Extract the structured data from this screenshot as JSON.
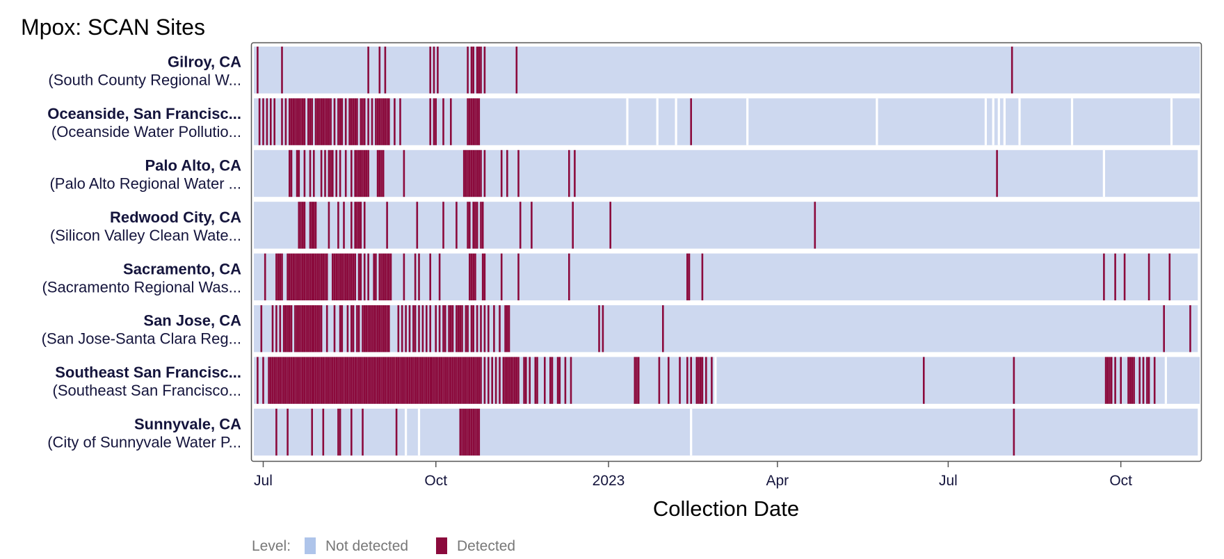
{
  "chart_data": {
    "type": "heatmap",
    "title": "Mpox: SCAN Sites",
    "xlabel": "Collection Date",
    "x_range": [
      "2022-06-26",
      "2023-11-12"
    ],
    "x_ticks": [
      {
        "date": "2022-07-01",
        "label": "Jul"
      },
      {
        "date": "2022-10-01",
        "label": "Oct"
      },
      {
        "date": "2023-01-01",
        "label": "2023"
      },
      {
        "date": "2023-04-01",
        "label": "Apr"
      },
      {
        "date": "2023-07-01",
        "label": "Jul"
      },
      {
        "date": "2023-10-01",
        "label": "Oct"
      }
    ],
    "legend": {
      "title": "Level:",
      "position": "bottom-left",
      "items": [
        {
          "label": "Not detected",
          "color": "#aec4ea"
        },
        {
          "label": "Detected",
          "color": "#8b0a3c"
        }
      ]
    },
    "colors": {
      "not_detected": "#cdd8ef",
      "detected": "#8b0a3c",
      "panel_border": "#555555"
    },
    "sites": [
      {
        "name": "Gilroy, CA",
        "plant": "(South County Regional W...",
        "data_end": "2023-11-12",
        "detected_dates": [
          "2022-06-28",
          "2022-07-11",
          "2022-08-26",
          "2022-09-01",
          "2022-09-04",
          "2022-09-28",
          "2022-09-30",
          "2022-10-02",
          "2022-10-18",
          "2022-10-20",
          "2022-10-21",
          "2022-10-23",
          "2022-10-24",
          "2022-10-25",
          "2022-10-27",
          "2022-11-13",
          "2023-08-04"
        ],
        "gap_dates": []
      },
      {
        "name": "Oceanside, San Francisc...",
        "plant": "(Oceanside Water Pollutio...",
        "data_end": "2023-11-12",
        "detected_dates": [
          "2022-06-29",
          "2022-07-01",
          "2022-07-03",
          "2022-07-05",
          "2022-07-07",
          "2022-07-11",
          "2022-07-13",
          "2022-07-15",
          "2022-07-16",
          "2022-07-17",
          "2022-07-18",
          "2022-07-19",
          "2022-07-20",
          "2022-07-21",
          "2022-07-22",
          "2022-07-23",
          "2022-07-25",
          "2022-07-26",
          "2022-07-27",
          "2022-07-29",
          "2022-07-30",
          "2022-07-31",
          "2022-08-01",
          "2022-08-02",
          "2022-08-03",
          "2022-08-04",
          "2022-08-05",
          "2022-08-06",
          "2022-08-08",
          "2022-08-10",
          "2022-08-11",
          "2022-08-12",
          "2022-08-14",
          "2022-08-16",
          "2022-08-17",
          "2022-08-18",
          "2022-08-19",
          "2022-08-20",
          "2022-08-22",
          "2022-08-23",
          "2022-08-24",
          "2022-08-26",
          "2022-08-28",
          "2022-08-30",
          "2022-08-31",
          "2022-09-01",
          "2022-09-02",
          "2022-09-03",
          "2022-09-04",
          "2022-09-05",
          "2022-09-06",
          "2022-09-09",
          "2022-09-12",
          "2022-09-28",
          "2022-09-30",
          "2022-10-01",
          "2022-10-05",
          "2022-10-09",
          "2022-10-18",
          "2022-10-19",
          "2022-10-20",
          "2022-10-21",
          "2022-10-22",
          "2022-10-23",
          "2022-10-24",
          "2023-02-14"
        ],
        "gap_dates": [
          "2023-01-11",
          "2023-01-27",
          "2023-02-06",
          "2023-03-16",
          "2023-05-24",
          "2023-07-21",
          "2023-07-25",
          "2023-07-28",
          "2023-07-31",
          "2023-08-08",
          "2023-09-05",
          "2023-10-28"
        ]
      },
      {
        "name": "Palo Alto, CA",
        "plant": "(Palo Alto Regional Water ...",
        "data_end": "2023-11-11",
        "detected_dates": [
          "2022-07-15",
          "2022-07-16",
          "2022-07-19",
          "2022-07-20",
          "2022-07-23",
          "2022-07-26",
          "2022-07-28",
          "2022-08-01",
          "2022-08-03",
          "2022-08-05",
          "2022-08-06",
          "2022-08-07",
          "2022-08-09",
          "2022-08-11",
          "2022-08-14",
          "2022-08-17",
          "2022-08-19",
          "2022-08-20",
          "2022-08-21",
          "2022-08-22",
          "2022-08-23",
          "2022-08-24",
          "2022-08-25",
          "2022-08-26",
          "2022-08-31",
          "2022-09-01",
          "2022-09-02",
          "2022-09-03",
          "2022-09-14",
          "2022-10-16",
          "2022-10-17",
          "2022-10-18",
          "2022-10-19",
          "2022-10-20",
          "2022-10-21",
          "2022-10-22",
          "2022-10-23",
          "2022-10-24",
          "2022-10-25",
          "2022-10-27",
          "2022-11-05",
          "2022-11-08",
          "2022-11-14",
          "2022-12-11",
          "2022-12-14",
          "2023-07-27"
        ],
        "gap_dates": [
          "2023-09-22"
        ]
      },
      {
        "name": "Redwood City, CA",
        "plant": "(Silicon Valley Clean Wate...",
        "data_end": "2023-11-12",
        "detected_dates": [
          "2022-07-20",
          "2022-07-21",
          "2022-07-22",
          "2022-07-23",
          "2022-07-26",
          "2022-07-27",
          "2022-07-28",
          "2022-07-29",
          "2022-08-05",
          "2022-08-10",
          "2022-08-13",
          "2022-08-17",
          "2022-08-19",
          "2022-08-20",
          "2022-08-21",
          "2022-08-22",
          "2022-08-24",
          "2022-09-05",
          "2022-09-21",
          "2022-10-05",
          "2022-10-12",
          "2022-10-18",
          "2022-10-19",
          "2022-10-21",
          "2022-10-22",
          "2022-10-23",
          "2022-10-25",
          "2022-10-26",
          "2022-11-15",
          "2022-11-21",
          "2022-12-13",
          "2023-01-02",
          "2023-04-21"
        ],
        "gap_dates": []
      },
      {
        "name": "Sacramento, CA",
        "plant": "(Sacramento Regional Was...",
        "data_end": "2023-11-11",
        "detected_dates": [
          "2022-07-02",
          "2022-07-08",
          "2022-07-09",
          "2022-07-10",
          "2022-07-11",
          "2022-07-14",
          "2022-07-15",
          "2022-07-16",
          "2022-07-17",
          "2022-07-18",
          "2022-07-19",
          "2022-07-20",
          "2022-07-21",
          "2022-07-22",
          "2022-07-23",
          "2022-07-24",
          "2022-07-25",
          "2022-07-26",
          "2022-07-27",
          "2022-07-28",
          "2022-07-29",
          "2022-07-30",
          "2022-07-31",
          "2022-08-01",
          "2022-08-02",
          "2022-08-03",
          "2022-08-04",
          "2022-08-07",
          "2022-08-08",
          "2022-08-09",
          "2022-08-10",
          "2022-08-11",
          "2022-08-12",
          "2022-08-13",
          "2022-08-14",
          "2022-08-15",
          "2022-08-16",
          "2022-08-17",
          "2022-08-18",
          "2022-08-19",
          "2022-08-21",
          "2022-08-22",
          "2022-08-24",
          "2022-08-26",
          "2022-08-29",
          "2022-08-30",
          "2022-09-01",
          "2022-09-02",
          "2022-09-03",
          "2022-09-04",
          "2022-09-05",
          "2022-09-06",
          "2022-09-07",
          "2022-09-14",
          "2022-09-20",
          "2022-09-22",
          "2022-09-28",
          "2022-10-03",
          "2022-10-19",
          "2022-10-20",
          "2022-10-21",
          "2022-10-22",
          "2022-10-26",
          "2022-10-27",
          "2022-11-05",
          "2022-11-14",
          "2022-12-11",
          "2023-02-12",
          "2023-02-13",
          "2023-02-20",
          "2023-09-22",
          "2023-09-28",
          "2023-10-03",
          "2023-10-16",
          "2023-10-27"
        ],
        "gap_dates": []
      },
      {
        "name": "San Jose, CA",
        "plant": "(San Jose-Santa Clara Reg...",
        "data_end": "2023-11-11",
        "detected_dates": [
          "2022-06-30",
          "2022-07-06",
          "2022-07-08",
          "2022-07-10",
          "2022-07-12",
          "2022-07-13",
          "2022-07-14",
          "2022-07-15",
          "2022-07-16",
          "2022-07-18",
          "2022-07-19",
          "2022-07-20",
          "2022-07-21",
          "2022-07-22",
          "2022-07-23",
          "2022-07-24",
          "2022-07-25",
          "2022-07-26",
          "2022-07-27",
          "2022-07-28",
          "2022-07-29",
          "2022-07-30",
          "2022-07-31",
          "2022-08-01",
          "2022-08-04",
          "2022-08-08",
          "2022-08-11",
          "2022-08-12",
          "2022-08-15",
          "2022-08-17",
          "2022-08-18",
          "2022-08-20",
          "2022-08-21",
          "2022-08-23",
          "2022-08-24",
          "2022-08-25",
          "2022-08-26",
          "2022-08-27",
          "2022-08-28",
          "2022-08-29",
          "2022-08-30",
          "2022-08-31",
          "2022-09-01",
          "2022-09-02",
          "2022-09-03",
          "2022-09-04",
          "2022-09-05",
          "2022-09-06",
          "2022-09-11",
          "2022-09-13",
          "2022-09-15",
          "2022-09-17",
          "2022-09-19",
          "2022-09-20",
          "2022-09-22",
          "2022-09-24",
          "2022-09-26",
          "2022-09-28",
          "2022-10-01",
          "2022-10-03",
          "2022-10-05",
          "2022-10-06",
          "2022-10-08",
          "2022-10-09",
          "2022-10-10",
          "2022-10-12",
          "2022-10-13",
          "2022-10-14",
          "2022-10-15",
          "2022-10-17",
          "2022-10-18",
          "2022-10-20",
          "2022-10-21",
          "2022-10-23",
          "2022-10-25",
          "2022-10-27",
          "2022-10-29",
          "2022-11-01",
          "2022-11-04",
          "2022-11-07",
          "2022-11-08",
          "2022-11-09",
          "2022-12-27",
          "2022-12-29",
          "2023-01-30",
          "2023-10-24",
          "2023-11-07"
        ],
        "gap_dates": []
      },
      {
        "name": "Southeast San Francisc...",
        "plant": "(Southeast San Francisco...",
        "data_end": "2023-11-12",
        "detected_dates": [
          "2022-06-28",
          "2022-07-01",
          "2022-07-04",
          "2022-07-05",
          "2022-07-06",
          "2022-07-07",
          "2022-07-08",
          "2022-07-09",
          "2022-07-10",
          "2022-07-11",
          "2022-07-12",
          "2022-07-13",
          "2022-07-14",
          "2022-07-15",
          "2022-07-16",
          "2022-07-17",
          "2022-07-18",
          "2022-07-19",
          "2022-07-20",
          "2022-07-21",
          "2022-07-22",
          "2022-07-23",
          "2022-07-24",
          "2022-07-25",
          "2022-07-26",
          "2022-07-27",
          "2022-07-28",
          "2022-07-29",
          "2022-07-30",
          "2022-07-31",
          "2022-08-01",
          "2022-08-02",
          "2022-08-03",
          "2022-08-04",
          "2022-08-05",
          "2022-08-06",
          "2022-08-07",
          "2022-08-08",
          "2022-08-09",
          "2022-08-10",
          "2022-08-11",
          "2022-08-12",
          "2022-08-13",
          "2022-08-14",
          "2022-08-15",
          "2022-08-16",
          "2022-08-17",
          "2022-08-18",
          "2022-08-19",
          "2022-08-20",
          "2022-08-21",
          "2022-08-22",
          "2022-08-23",
          "2022-08-24",
          "2022-08-25",
          "2022-08-26",
          "2022-08-27",
          "2022-08-28",
          "2022-08-29",
          "2022-08-30",
          "2022-08-31",
          "2022-09-01",
          "2022-09-02",
          "2022-09-03",
          "2022-09-04",
          "2022-09-05",
          "2022-09-06",
          "2022-09-07",
          "2022-09-08",
          "2022-09-09",
          "2022-09-10",
          "2022-09-11",
          "2022-09-12",
          "2022-09-13",
          "2022-09-14",
          "2022-09-15",
          "2022-09-16",
          "2022-09-17",
          "2022-09-18",
          "2022-09-19",
          "2022-09-20",
          "2022-09-21",
          "2022-09-22",
          "2022-09-23",
          "2022-09-24",
          "2022-09-25",
          "2022-09-26",
          "2022-09-27",
          "2022-09-28",
          "2022-09-29",
          "2022-09-30",
          "2022-10-01",
          "2022-10-02",
          "2022-10-03",
          "2022-10-04",
          "2022-10-05",
          "2022-10-06",
          "2022-10-07",
          "2022-10-08",
          "2022-10-09",
          "2022-10-10",
          "2022-10-11",
          "2022-10-12",
          "2022-10-13",
          "2022-10-14",
          "2022-10-15",
          "2022-10-16",
          "2022-10-17",
          "2022-10-18",
          "2022-10-19",
          "2022-10-20",
          "2022-10-21",
          "2022-10-22",
          "2022-10-23",
          "2022-10-24",
          "2022-10-25",
          "2022-10-27",
          "2022-10-29",
          "2022-10-31",
          "2022-11-02",
          "2022-11-04",
          "2022-11-06",
          "2022-11-07",
          "2022-11-08",
          "2022-11-09",
          "2022-11-10",
          "2022-11-11",
          "2022-11-12",
          "2022-11-13",
          "2022-11-14",
          "2022-11-17",
          "2022-11-18",
          "2022-11-20",
          "2022-11-23",
          "2022-11-24",
          "2022-11-28",
          "2022-12-01",
          "2022-12-02",
          "2022-12-05",
          "2022-12-06",
          "2022-12-09",
          "2022-12-12",
          "2023-01-15",
          "2023-01-16",
          "2023-01-17",
          "2023-01-28",
          "2023-02-02",
          "2023-02-08",
          "2023-02-12",
          "2023-02-14",
          "2023-02-17",
          "2023-02-18",
          "2023-02-19",
          "2023-02-20",
          "2023-02-22",
          "2023-02-25",
          "2023-06-18",
          "2023-08-05",
          "2023-09-23",
          "2023-09-24",
          "2023-09-25",
          "2023-09-26",
          "2023-09-28",
          "2023-10-01",
          "2023-10-05",
          "2023-10-06",
          "2023-10-07",
          "2023-10-08",
          "2023-10-11",
          "2023-10-13",
          "2023-10-15",
          "2023-10-16",
          "2023-10-19"
        ],
        "gap_dates": [
          "2022-09-09",
          "2023-02-27",
          "2023-10-25"
        ]
      },
      {
        "name": "Sunnyvale, CA",
        "plant": "(City of Sunnyvale Water P...",
        "data_end": "2023-11-11",
        "detected_dates": [
          "2022-07-08",
          "2022-07-14",
          "2022-07-27",
          "2022-08-02",
          "2022-08-10",
          "2022-08-11",
          "2022-08-17",
          "2022-08-23",
          "2022-09-10",
          "2022-10-14",
          "2022-10-15",
          "2022-10-16",
          "2022-10-17",
          "2022-10-18",
          "2022-10-19",
          "2022-10-20",
          "2022-10-21",
          "2022-10-22",
          "2022-10-23",
          "2022-10-24",
          "2023-08-05"
        ],
        "gap_dates": [
          "2022-09-15",
          "2022-09-22",
          "2023-02-14"
        ]
      }
    ]
  }
}
